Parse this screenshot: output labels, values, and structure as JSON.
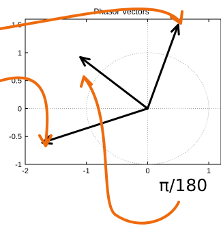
{
  "chart_data": {
    "type": "line",
    "title": "Phasor Vectors",
    "xlabel": "",
    "ylabel": "",
    "xlim": [
      -2,
      1.2
    ],
    "ylim": [
      -1,
      1.6
    ],
    "x_ticks": [
      "-2",
      "-1",
      "0",
      "1"
    ],
    "x_tick_values": [
      -2,
      -1,
      0,
      1
    ],
    "y_ticks": [
      "1.5",
      "1",
      "0.5",
      "0",
      "-0.5",
      "-1"
    ],
    "y_tick_values": [
      1.5,
      1,
      0.5,
      0,
      -0.5,
      -1
    ],
    "grid": false,
    "reference_circle_radius": 1,
    "series": [
      {
        "x": [
          0,
          0.5
        ],
        "y": [
          0,
          1.5
        ],
        "color": "#000000"
      },
      {
        "x": [
          0,
          -1.1
        ],
        "y": [
          0,
          0.92
        ],
        "color": "#000000"
      },
      {
        "x": [
          0,
          -1.72
        ],
        "y": [
          0,
          -0.61
        ],
        "color": "#000000"
      }
    ],
    "annotation_color": "#ee6a0c",
    "fragment_text": "π/180"
  }
}
